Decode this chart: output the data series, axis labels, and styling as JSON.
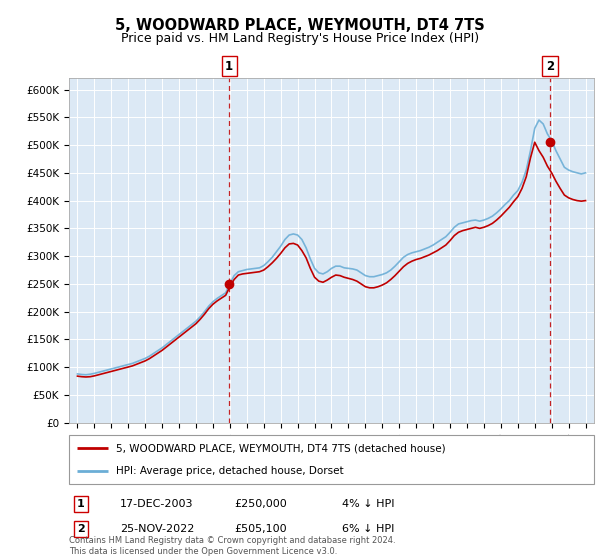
{
  "title": "5, WOODWARD PLACE, WEYMOUTH, DT4 7TS",
  "subtitle": "Price paid vs. HM Land Registry's House Price Index (HPI)",
  "plot_bg_color": "#dce9f5",
  "ylabel_ticks": [
    "£0",
    "£50K",
    "£100K",
    "£150K",
    "£200K",
    "£250K",
    "£300K",
    "£350K",
    "£400K",
    "£450K",
    "£500K",
    "£550K",
    "£600K"
  ],
  "ytick_values": [
    0,
    50000,
    100000,
    150000,
    200000,
    250000,
    300000,
    350000,
    400000,
    450000,
    500000,
    550000,
    600000
  ],
  "x_years": [
    1995.0,
    1995.25,
    1995.5,
    1995.75,
    1996.0,
    1996.25,
    1996.5,
    1996.75,
    1997.0,
    1997.25,
    1997.5,
    1997.75,
    1998.0,
    1998.25,
    1998.5,
    1998.75,
    1999.0,
    1999.25,
    1999.5,
    1999.75,
    2000.0,
    2000.25,
    2000.5,
    2000.75,
    2001.0,
    2001.25,
    2001.5,
    2001.75,
    2002.0,
    2002.25,
    2002.5,
    2002.75,
    2003.0,
    2003.25,
    2003.5,
    2003.75,
    2004.0,
    2004.25,
    2004.5,
    2004.75,
    2005.0,
    2005.25,
    2005.5,
    2005.75,
    2006.0,
    2006.25,
    2006.5,
    2006.75,
    2007.0,
    2007.25,
    2007.5,
    2007.75,
    2008.0,
    2008.25,
    2008.5,
    2008.75,
    2009.0,
    2009.25,
    2009.5,
    2009.75,
    2010.0,
    2010.25,
    2010.5,
    2010.75,
    2011.0,
    2011.25,
    2011.5,
    2011.75,
    2012.0,
    2012.25,
    2012.5,
    2012.75,
    2013.0,
    2013.25,
    2013.5,
    2013.75,
    2014.0,
    2014.25,
    2014.5,
    2014.75,
    2015.0,
    2015.25,
    2015.5,
    2015.75,
    2016.0,
    2016.25,
    2016.5,
    2016.75,
    2017.0,
    2017.25,
    2017.5,
    2017.75,
    2018.0,
    2018.25,
    2018.5,
    2018.75,
    2019.0,
    2019.25,
    2019.5,
    2019.75,
    2020.0,
    2020.25,
    2020.5,
    2020.75,
    2021.0,
    2021.25,
    2021.5,
    2021.75,
    2022.0,
    2022.25,
    2022.5,
    2022.75,
    2023.0,
    2023.25,
    2023.5,
    2023.75,
    2024.0,
    2024.25,
    2024.5,
    2024.75,
    2025.0
  ],
  "hpi_values": [
    88000,
    87000,
    86500,
    87500,
    89000,
    91000,
    93000,
    95000,
    97000,
    99000,
    101000,
    103000,
    105000,
    107000,
    110000,
    113000,
    116000,
    120000,
    125000,
    130000,
    135000,
    141000,
    147000,
    153000,
    159000,
    165000,
    171000,
    177000,
    183000,
    191000,
    200000,
    210000,
    218000,
    224000,
    229000,
    234000,
    250000,
    265000,
    272000,
    274000,
    276000,
    277000,
    278000,
    279000,
    283000,
    290000,
    298000,
    308000,
    318000,
    330000,
    338000,
    340000,
    338000,
    330000,
    315000,
    295000,
    278000,
    270000,
    268000,
    272000,
    278000,
    282000,
    282000,
    279000,
    278000,
    277000,
    275000,
    270000,
    265000,
    263000,
    263000,
    265000,
    267000,
    270000,
    275000,
    282000,
    290000,
    298000,
    303000,
    306000,
    308000,
    310000,
    313000,
    316000,
    320000,
    325000,
    330000,
    335000,
    343000,
    352000,
    358000,
    360000,
    362000,
    364000,
    365000,
    363000,
    365000,
    368000,
    372000,
    378000,
    385000,
    393000,
    400000,
    410000,
    418000,
    433000,
    455000,
    490000,
    530000,
    545000,
    538000,
    520000,
    508000,
    490000,
    475000,
    460000,
    455000,
    452000,
    450000,
    448000,
    450000
  ],
  "price_values": [
    84000,
    83000,
    82500,
    83000,
    84500,
    86500,
    88500,
    90500,
    92500,
    94500,
    96500,
    98500,
    100500,
    102500,
    105500,
    108500,
    111500,
    115500,
    120500,
    125500,
    130500,
    136500,
    142500,
    148500,
    154500,
    160500,
    166500,
    172500,
    178500,
    186500,
    195500,
    205500,
    213500,
    219500,
    224500,
    229500,
    245000,
    258000,
    266000,
    268000,
    269000,
    270000,
    271000,
    272000,
    275000,
    281000,
    288000,
    296000,
    305000,
    315000,
    322000,
    323000,
    320000,
    310000,
    297000,
    278000,
    262000,
    255000,
    253000,
    257000,
    262000,
    266000,
    265000,
    262000,
    260000,
    258000,
    255000,
    250000,
    245000,
    243000,
    243000,
    245000,
    248000,
    252000,
    258000,
    265000,
    273000,
    281000,
    287000,
    291000,
    294000,
    296000,
    299000,
    302000,
    306000,
    310000,
    315000,
    320000,
    328000,
    337000,
    343000,
    346000,
    348000,
    350000,
    352000,
    350000,
    352000,
    355000,
    359000,
    365000,
    372000,
    380000,
    388000,
    398000,
    407000,
    422000,
    443000,
    477000,
    505100,
    490000,
    478000,
    462000,
    450000,
    435000,
    422000,
    410000,
    405000,
    402000,
    400000,
    399000,
    400000
  ],
  "sale1_x": 2003.96,
  "sale1_y": 250000,
  "sale2_x": 2022.9,
  "sale2_y": 505100,
  "hpi_color": "#6baed6",
  "price_color": "#c00000",
  "sale_dot_color": "#c00000",
  "dashed_line_color": "#c00000",
  "legend1_label": "5, WOODWARD PLACE, WEYMOUTH, DT4 7TS (detached house)",
  "legend2_label": "HPI: Average price, detached house, Dorset",
  "note1_num": "1",
  "note1_date": "17-DEC-2003",
  "note1_price": "£250,000",
  "note1_hpi": "4% ↓ HPI",
  "note2_num": "2",
  "note2_date": "25-NOV-2022",
  "note2_price": "£505,100",
  "note2_hpi": "6% ↓ HPI",
  "footer": "Contains HM Land Registry data © Crown copyright and database right 2024.\nThis data is licensed under the Open Government Licence v3.0.",
  "xlim": [
    1994.5,
    2025.5
  ],
  "ylim": [
    0,
    620000
  ]
}
